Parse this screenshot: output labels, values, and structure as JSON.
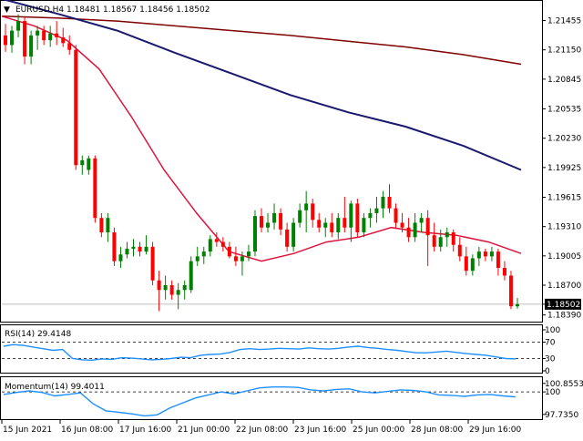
{
  "symbol_header": {
    "triangle": "▼",
    "text": "EURUSD,H4  1.18481 1.18567 1.18456 1.18502"
  },
  "colors": {
    "bull": "#008000",
    "bear": "#ff0000",
    "ma_fast": "#dc143c",
    "ma_mid": "#191970",
    "ma_slow": "#800000",
    "indicator": "#1e90ff",
    "grid_dash": "#000000",
    "axis": "#000000"
  },
  "chart_data": [
    {
      "type": "candlestick",
      "title": "EURUSD,H4",
      "ohlc_last": [
        "1.18481",
        "1.18567",
        "1.18456",
        "1.18502"
      ],
      "ylim": [
        1.1833,
        1.2165
      ],
      "y_ticks": [
        "1.21455",
        "1.21150",
        "1.20845",
        "1.20535",
        "1.20230",
        "1.19925",
        "1.19615",
        "1.19310",
        "1.19005",
        "1.18700",
        "1.18502",
        "1.18390"
      ],
      "current_price": "1.18502",
      "x_ticks": [
        "15 Jun 2021",
        "16 Jun 08:00",
        "17 Jun 16:00",
        "21 Jun 00:00",
        "22 Jun 08:00",
        "23 Jun 16:00",
        "25 Jun 00:00",
        "28 Jun 08:00",
        "29 Jun 16:00"
      ],
      "candles": [
        {
          "o": 1.213,
          "h": 1.2142,
          "l": 1.2113,
          "c": 1.212
        },
        {
          "o": 1.212,
          "h": 1.214,
          "l": 1.2112,
          "c": 1.2135
        },
        {
          "o": 1.2135,
          "h": 1.2152,
          "l": 1.2128,
          "c": 1.2145
        },
        {
          "o": 1.2145,
          "h": 1.215,
          "l": 1.21,
          "c": 1.2108
        },
        {
          "o": 1.2108,
          "h": 1.2135,
          "l": 1.21,
          "c": 1.213
        },
        {
          "o": 1.213,
          "h": 1.214,
          "l": 1.2115,
          "c": 1.2135
        },
        {
          "o": 1.2135,
          "h": 1.214,
          "l": 1.212,
          "c": 1.2125
        },
        {
          "o": 1.2125,
          "h": 1.214,
          "l": 1.2118,
          "c": 1.2132
        },
        {
          "o": 1.2132,
          "h": 1.2145,
          "l": 1.212,
          "c": 1.2128
        },
        {
          "o": 1.2128,
          "h": 1.2138,
          "l": 1.2118,
          "c": 1.2122
        },
        {
          "o": 1.2122,
          "h": 1.213,
          "l": 1.211,
          "c": 1.2115
        },
        {
          "o": 1.2115,
          "h": 1.212,
          "l": 1.199,
          "c": 1.1995
        },
        {
          "o": 1.1995,
          "h": 1.2005,
          "l": 1.1985,
          "c": 1.2
        },
        {
          "o": 1.199,
          "h": 1.2005,
          "l": 1.1985,
          "c": 1.2002
        },
        {
          "o": 1.2002,
          "h": 1.2005,
          "l": 1.1935,
          "c": 1.194
        },
        {
          "o": 1.194,
          "h": 1.1945,
          "l": 1.192,
          "c": 1.1925
        },
        {
          "o": 1.1925,
          "h": 1.1945,
          "l": 1.1915,
          "c": 1.194
        },
        {
          "o": 1.1925,
          "h": 1.193,
          "l": 1.189,
          "c": 1.1895
        },
        {
          "o": 1.1895,
          "h": 1.191,
          "l": 1.1888,
          "c": 1.1902
        },
        {
          "o": 1.1902,
          "h": 1.1915,
          "l": 1.1898,
          "c": 1.1908
        },
        {
          "o": 1.1908,
          "h": 1.1918,
          "l": 1.19,
          "c": 1.191
        },
        {
          "o": 1.191,
          "h": 1.1915,
          "l": 1.19,
          "c": 1.1905
        },
        {
          "o": 1.1905,
          "h": 1.1922,
          "l": 1.1902,
          "c": 1.191
        },
        {
          "o": 1.191,
          "h": 1.1915,
          "l": 1.187,
          "c": 1.1875
        },
        {
          "o": 1.1875,
          "h": 1.1885,
          "l": 1.1843,
          "c": 1.1865
        },
        {
          "o": 1.1865,
          "h": 1.188,
          "l": 1.1855,
          "c": 1.187
        },
        {
          "o": 1.187,
          "h": 1.1875,
          "l": 1.1855,
          "c": 1.186
        },
        {
          "o": 1.186,
          "h": 1.1872,
          "l": 1.1845,
          "c": 1.1865
        },
        {
          "o": 1.1865,
          "h": 1.1875,
          "l": 1.1855,
          "c": 1.187
        },
        {
          "o": 1.1865,
          "h": 1.19,
          "l": 1.1862,
          "c": 1.1895
        },
        {
          "o": 1.1895,
          "h": 1.191,
          "l": 1.189,
          "c": 1.19
        },
        {
          "o": 1.19,
          "h": 1.191,
          "l": 1.1892,
          "c": 1.1905
        },
        {
          "o": 1.1905,
          "h": 1.1922,
          "l": 1.19,
          "c": 1.1918
        },
        {
          "o": 1.1918,
          "h": 1.1925,
          "l": 1.191,
          "c": 1.1915
        },
        {
          "o": 1.1915,
          "h": 1.192,
          "l": 1.1905,
          "c": 1.191
        },
        {
          "o": 1.191,
          "h": 1.1915,
          "l": 1.1898,
          "c": 1.19
        },
        {
          "o": 1.19,
          "h": 1.191,
          "l": 1.189,
          "c": 1.1895
        },
        {
          "o": 1.1895,
          "h": 1.1905,
          "l": 1.188,
          "c": 1.19
        },
        {
          "o": 1.19,
          "h": 1.1912,
          "l": 1.1895,
          "c": 1.1905
        },
        {
          "o": 1.1905,
          "h": 1.1948,
          "l": 1.19,
          "c": 1.1942
        },
        {
          "o": 1.1942,
          "h": 1.195,
          "l": 1.1925,
          "c": 1.193
        },
        {
          "o": 1.193,
          "h": 1.1945,
          "l": 1.1925,
          "c": 1.1935
        },
        {
          "o": 1.1935,
          "h": 1.1955,
          "l": 1.1928,
          "c": 1.1945
        },
        {
          "o": 1.1945,
          "h": 1.195,
          "l": 1.1922,
          "c": 1.1928
        },
        {
          "o": 1.1928,
          "h": 1.1935,
          "l": 1.1905,
          "c": 1.191
        },
        {
          "o": 1.191,
          "h": 1.194,
          "l": 1.1905,
          "c": 1.1935
        },
        {
          "o": 1.1935,
          "h": 1.1955,
          "l": 1.193,
          "c": 1.1948
        },
        {
          "o": 1.1948,
          "h": 1.1968,
          "l": 1.1925,
          "c": 1.1955
        },
        {
          "o": 1.1955,
          "h": 1.196,
          "l": 1.193,
          "c": 1.1938
        },
        {
          "o": 1.1938,
          "h": 1.1945,
          "l": 1.1925,
          "c": 1.193
        },
        {
          "o": 1.193,
          "h": 1.194,
          "l": 1.192,
          "c": 1.1935
        },
        {
          "o": 1.1935,
          "h": 1.1945,
          "l": 1.192,
          "c": 1.1925
        },
        {
          "o": 1.1925,
          "h": 1.1945,
          "l": 1.1918,
          "c": 1.194
        },
        {
          "o": 1.194,
          "h": 1.1962,
          "l": 1.1925,
          "c": 1.193
        },
        {
          "o": 1.193,
          "h": 1.1958,
          "l": 1.1915,
          "c": 1.1955
        },
        {
          "o": 1.1955,
          "h": 1.196,
          "l": 1.192,
          "c": 1.1925
        },
        {
          "o": 1.1925,
          "h": 1.1945,
          "l": 1.192,
          "c": 1.194
        },
        {
          "o": 1.194,
          "h": 1.195,
          "l": 1.193,
          "c": 1.1945
        },
        {
          "o": 1.1945,
          "h": 1.1962,
          "l": 1.1935,
          "c": 1.195
        },
        {
          "o": 1.195,
          "h": 1.1968,
          "l": 1.194,
          "c": 1.1962
        },
        {
          "o": 1.1962,
          "h": 1.1975,
          "l": 1.1945,
          "c": 1.195
        },
        {
          "o": 1.195,
          "h": 1.1955,
          "l": 1.193,
          "c": 1.1935
        },
        {
          "o": 1.1935,
          "h": 1.1945,
          "l": 1.1925,
          "c": 1.193
        },
        {
          "o": 1.193,
          "h": 1.194,
          "l": 1.1915,
          "c": 1.192
        },
        {
          "o": 1.192,
          "h": 1.1945,
          "l": 1.1915,
          "c": 1.1935
        },
        {
          "o": 1.1935,
          "h": 1.1945,
          "l": 1.1925,
          "c": 1.194
        },
        {
          "o": 1.194,
          "h": 1.1948,
          "l": 1.189,
          "c": 1.1922
        },
        {
          "o": 1.1922,
          "h": 1.1935,
          "l": 1.1905,
          "c": 1.191
        },
        {
          "o": 1.191,
          "h": 1.1928,
          "l": 1.1905,
          "c": 1.192
        },
        {
          "o": 1.192,
          "h": 1.193,
          "l": 1.191,
          "c": 1.1925
        },
        {
          "o": 1.1925,
          "h": 1.1928,
          "l": 1.1905,
          "c": 1.1912
        },
        {
          "o": 1.1912,
          "h": 1.192,
          "l": 1.1895,
          "c": 1.19
        },
        {
          "o": 1.19,
          "h": 1.191,
          "l": 1.188,
          "c": 1.1885
        },
        {
          "o": 1.1885,
          "h": 1.1902,
          "l": 1.188,
          "c": 1.1898
        },
        {
          "o": 1.1898,
          "h": 1.191,
          "l": 1.189,
          "c": 1.1905
        },
        {
          "o": 1.1905,
          "h": 1.1908,
          "l": 1.1895,
          "c": 1.19
        },
        {
          "o": 1.19,
          "h": 1.191,
          "l": 1.1895,
          "c": 1.1905
        },
        {
          "o": 1.1905,
          "h": 1.1908,
          "l": 1.188,
          "c": 1.1888
        },
        {
          "o": 1.1888,
          "h": 1.1895,
          "l": 1.1875,
          "c": 1.188
        },
        {
          "o": 1.188,
          "h": 1.1885,
          "l": 1.1845,
          "c": 1.1848
        },
        {
          "o": 1.1848,
          "h": 1.18567,
          "l": 1.18456,
          "c": 1.18502
        }
      ],
      "series": [
        {
          "color_key": "ma_slow",
          "values": [
            1.215,
            1.2148,
            1.2145,
            1.214,
            1.2135,
            1.213,
            1.2124,
            1.2118,
            1.211,
            1.21
          ]
        },
        {
          "color_key": "ma_mid",
          "values": [
            1.2168,
            1.2152,
            1.2135,
            1.2112,
            1.209,
            1.2068,
            1.205,
            1.2035,
            1.2015,
            1.199
          ]
        },
        {
          "color_key": "ma_fast",
          "values": [
            1.215,
            1.214,
            1.2125,
            1.2095,
            1.2045,
            1.199,
            1.1945,
            1.1905,
            1.1895,
            1.1903,
            1.1915,
            1.192,
            1.193,
            1.1925,
            1.1922,
            1.1915,
            1.1903
          ]
        }
      ]
    },
    {
      "type": "line",
      "title": "RSI(14) 29.4148",
      "ylim": [
        0,
        100
      ],
      "y_ticks": [
        "100",
        "70",
        "30",
        "0"
      ],
      "levels": [
        70,
        30
      ],
      "values": [
        60,
        64,
        62,
        58,
        54,
        50,
        52,
        30,
        27,
        26,
        29,
        28,
        32,
        31,
        29,
        27,
        28,
        30,
        33,
        32,
        38,
        40,
        41,
        45,
        52,
        54,
        52,
        53,
        55,
        54,
        53,
        56,
        54,
        53,
        55,
        58,
        60,
        57,
        55,
        52,
        50,
        47,
        44,
        44,
        46,
        48,
        45,
        42,
        40,
        38,
        34,
        30,
        29
      ]
    },
    {
      "type": "line",
      "title": "Momentum(14) 99.4011",
      "ylim": [
        97.45,
        101.2
      ],
      "y_ticks": [
        "100.8553",
        "100",
        "97.7350"
      ],
      "levels": [
        100
      ],
      "values": [
        99.75,
        99.95,
        100.1,
        99.95,
        99.6,
        99.75,
        99.9,
        98.8,
        98.1,
        97.95,
        97.8,
        97.6,
        97.7,
        98.4,
        98.9,
        99.4,
        99.7,
        100.0,
        99.8,
        100.1,
        100.4,
        100.5,
        100.5,
        100.45,
        100.2,
        100.1,
        100.25,
        100.3,
        100.0,
        99.9,
        100.05,
        100.2,
        100.15,
        100.0,
        99.7,
        99.65,
        99.55,
        99.7,
        99.75,
        99.6,
        99.5
      ]
    }
  ]
}
